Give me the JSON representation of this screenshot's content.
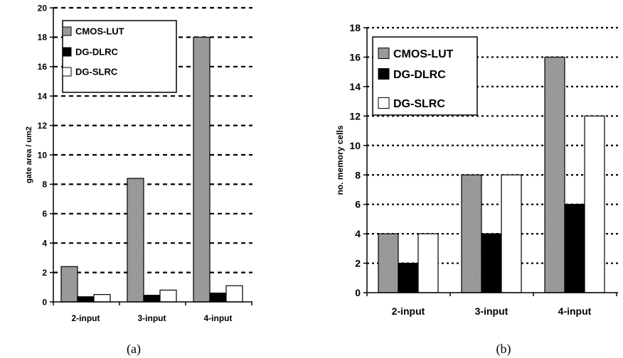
{
  "chart_data": [
    {
      "id": "a",
      "type": "bar",
      "caption": "(a)",
      "ylabel": "gate area / um2",
      "ylim": [
        0,
        20
      ],
      "ytick_step": 2,
      "categories": [
        "2-input",
        "3-input",
        "4-input"
      ],
      "grid": "horizontal dashed",
      "legend_position": "top-left",
      "series": [
        {
          "name": "CMOS-LUT",
          "fill": "checkered",
          "values": [
            2.4,
            8.4,
            18.0
          ]
        },
        {
          "name": "DG-DLRC",
          "fill": "black",
          "values": [
            0.35,
            0.45,
            0.6
          ]
        },
        {
          "name": "DG-SLRC",
          "fill": "white",
          "values": [
            0.5,
            0.8,
            1.1
          ]
        }
      ]
    },
    {
      "id": "b",
      "type": "bar",
      "caption": "(b)",
      "ylabel": "no. memory cells",
      "ylim": [
        0,
        18
      ],
      "ytick_step": 2,
      "categories": [
        "2-input",
        "3-input",
        "4-input"
      ],
      "grid": "horizontal dotted",
      "legend_position": "top-left",
      "series": [
        {
          "name": "CMOS-LUT",
          "fill": "checkered",
          "values": [
            4,
            8,
            16
          ]
        },
        {
          "name": "DG-DLRC",
          "fill": "black",
          "values": [
            2,
            4,
            6
          ]
        },
        {
          "name": "DG-SLRC",
          "fill": "white",
          "values": [
            4,
            8,
            12
          ]
        }
      ]
    }
  ]
}
